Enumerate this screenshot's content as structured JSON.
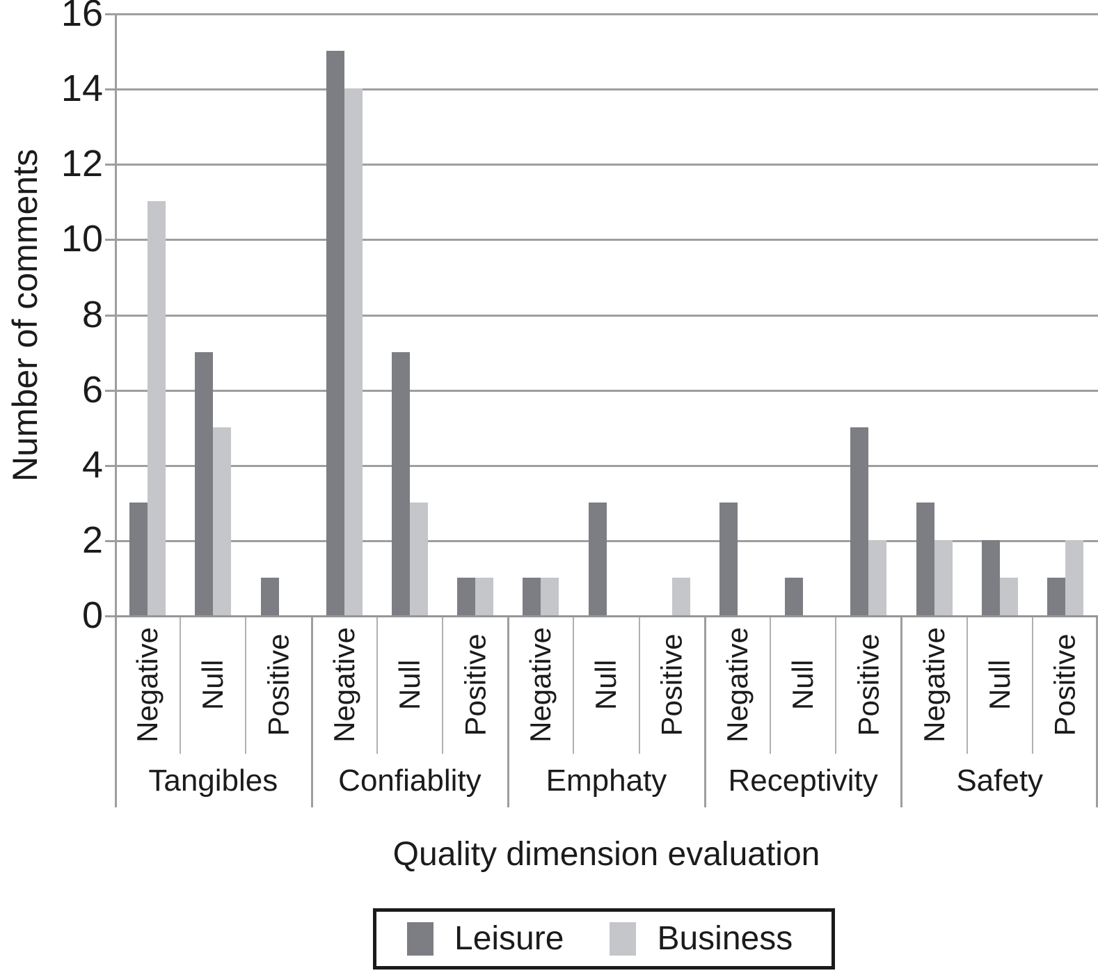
{
  "chart_data": {
    "type": "bar",
    "title": "",
    "xlabel": "Quality dimension evaluation",
    "ylabel": "Number of comments",
    "ylim": [
      0,
      16
    ],
    "yticks": [
      0,
      2,
      4,
      6,
      8,
      10,
      12,
      14,
      16
    ],
    "grid": "horizontal",
    "legend_position": "bottom",
    "groups": [
      "Tangibles",
      "Confiablity",
      "Emphaty",
      "Receptivity",
      "Safety"
    ],
    "categories": [
      "Negative",
      "Null",
      "Positive"
    ],
    "series": [
      {
        "name": "Leisure",
        "color": "#7d7e83",
        "values": [
          [
            3,
            7,
            1
          ],
          [
            15,
            7,
            1
          ],
          [
            1,
            3,
            0
          ],
          [
            3,
            1,
            5
          ],
          [
            3,
            2,
            1
          ]
        ]
      },
      {
        "name": "Business",
        "color": "#c5c6ca",
        "values": [
          [
            11,
            5,
            0
          ],
          [
            14,
            3,
            1
          ],
          [
            1,
            0,
            1
          ],
          [
            0,
            0,
            2
          ],
          [
            2,
            1,
            2
          ]
        ]
      }
    ]
  },
  "styles": {
    "grid_color": "#9e9e9e",
    "separator_color": "#b0b0b0",
    "text_color": "#1b1b1b",
    "background": "#ffffff",
    "legend_border": "#1b1b1b"
  }
}
